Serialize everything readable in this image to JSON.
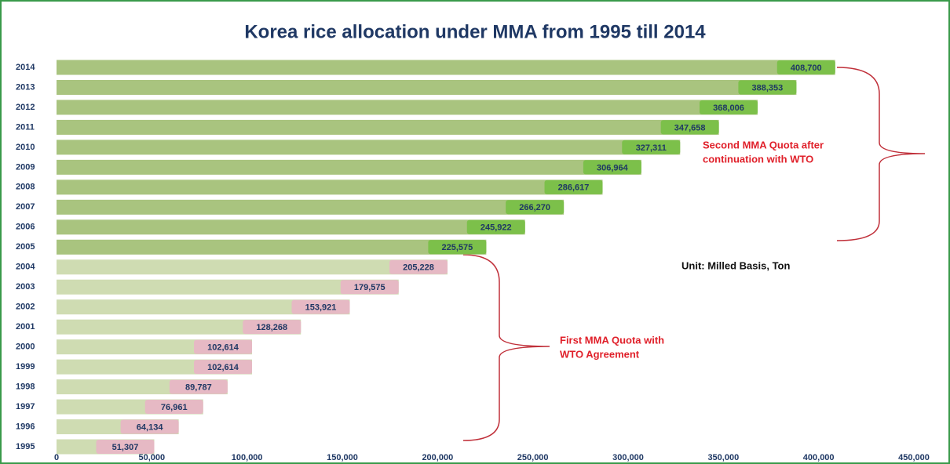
{
  "chart_data": {
    "type": "barh",
    "title": "Korea rice allocation under MMA from 1995 till 2014",
    "categories": [
      "2014",
      "2013",
      "2012",
      "2011",
      "2010",
      "2009",
      "2008",
      "2007",
      "2006",
      "2005",
      "2004",
      "2003",
      "2002",
      "2001",
      "2000",
      "1999",
      "1998",
      "1997",
      "1996",
      "1995"
    ],
    "values": [
      408700,
      388353,
      368006,
      347658,
      327311,
      306964,
      286617,
      266270,
      245922,
      225575,
      205228,
      179575,
      153921,
      128268,
      102614,
      102614,
      89787,
      76961,
      64134,
      51307
    ],
    "value_labels": [
      "408,700",
      "388,353",
      "368,006",
      "347,658",
      "327,311",
      "306,964",
      "286,617",
      "266,270",
      "245,922",
      "225,575",
      "205,228",
      "179,575",
      "153,921",
      "128,268",
      "102,614",
      "102,614",
      "89,787",
      "76,961",
      "64,134",
      "51,307"
    ],
    "colors": [
      "#a9c47f",
      "#a9c47f",
      "#a9c47f",
      "#a9c47f",
      "#a9c47f",
      "#a9c47f",
      "#a9c47f",
      "#a9c47f",
      "#a9c47f",
      "#a9c47f",
      "#cfdcb2",
      "#cfdcb2",
      "#cfdcb2",
      "#cfdcb2",
      "#cfdcb2",
      "#cfdcb2",
      "#cfdcb2",
      "#cfdcb2",
      "#cfdcb2",
      "#cfdcb2"
    ],
    "label_colors": [
      "#7cc04a",
      "#7cc04a",
      "#7cc04a",
      "#7cc04a",
      "#7cc04a",
      "#7cc04a",
      "#7cc04a",
      "#7cc04a",
      "#7cc04a",
      "#7cc04a",
      "#e6b9c4",
      "#e6b9c4",
      "#e6b9c4",
      "#e6b9c4",
      "#e6b9c4",
      "#e6b9c4",
      "#e6b9c4",
      "#e6b9c4",
      "#e6b9c4",
      "#e6b9c4"
    ],
    "xlim": [
      0,
      450000
    ],
    "xticks": [
      0,
      {
        "value": 50000,
        "label": "50,000"
      },
      {
        "value": 100000,
        "label": "100,000"
      },
      {
        "value": 150000,
        "label": "150,000"
      },
      {
        "value": 200000,
        "label": "200,000"
      },
      {
        "value": 250000,
        "label": "250,000"
      },
      {
        "value": 300000,
        "label": "300,000"
      },
      {
        "value": 350000,
        "label": "350,000"
      },
      {
        "value": 400000,
        "label": "400,000"
      },
      {
        "value": 450000,
        "label": "450,000"
      }
    ],
    "annotations": [
      [
        "Second MMA Quota after",
        "continuation with WTO"
      ],
      [
        "Unit: Milled Basis, Ton"
      ],
      [
        "First MMA Quota with",
        "WTO Agreement"
      ]
    ]
  }
}
